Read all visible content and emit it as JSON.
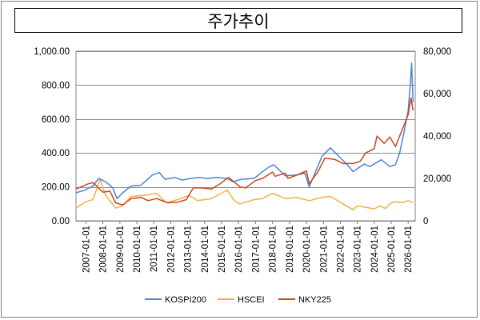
{
  "chart_data": {
    "type": "line",
    "title": "주가추이",
    "left_axis": {
      "min": 0,
      "max": 1000,
      "ticks": [
        "0.00",
        "200.00",
        "400.00",
        "600.00",
        "800.00",
        "1,000.00"
      ],
      "tick_values": [
        0,
        200,
        400,
        600,
        800,
        1000
      ]
    },
    "right_axis": {
      "min": 0,
      "max": 80000,
      "ticks": [
        "0",
        "20,000",
        "40,000",
        "60,000",
        "80,000"
      ],
      "tick_values": [
        0,
        20000,
        40000,
        60000,
        80000
      ]
    },
    "x_axis": {
      "start": "2006-06-01",
      "end": "2026-06-01",
      "ticks": [
        "2007-01-01",
        "2008-01-01",
        "2009-01-01",
        "2010-01-01",
        "2011-01-01",
        "2012-01-01",
        "2013-01-01",
        "2014-01-01",
        "2015-01-01",
        "2016-01-01",
        "2017-01-01",
        "2018-01-01",
        "2019-01-01",
        "2020-01-01",
        "2021-01-01",
        "2022-01-01",
        "2023-01-01",
        "2024-01-01",
        "2025-01-01",
        "2026-01-01"
      ]
    },
    "grid": "horizontal",
    "legend_position": "bottom",
    "series": [
      {
        "name": "KOSPI200",
        "axis": "left",
        "color": "#4a86d0",
        "x": [
          "2006-06-01",
          "2006-12-01",
          "2007-06-01",
          "2007-10-01",
          "2008-03-01",
          "2008-08-01",
          "2008-11-01",
          "2009-03-01",
          "2009-09-01",
          "2010-04-01",
          "2010-12-01",
          "2011-05-01",
          "2011-09-01",
          "2012-04-01",
          "2012-09-01",
          "2013-03-01",
          "2013-09-01",
          "2014-03-01",
          "2014-09-01",
          "2015-05-01",
          "2015-09-01",
          "2016-03-01",
          "2016-12-01",
          "2017-06-01",
          "2017-11-01",
          "2018-02-01",
          "2018-10-01",
          "2019-06-01",
          "2019-12-01",
          "2020-03-01",
          "2020-06-01",
          "2020-12-01",
          "2021-06-01",
          "2021-12-01",
          "2022-06-01",
          "2022-10-01",
          "2023-06-01",
          "2023-10-01",
          "2024-06-01",
          "2024-12-01",
          "2025-04-01",
          "2025-07-01",
          "2025-10-01",
          "2026-01-01",
          "2026-02-15",
          "2026-03-15",
          "2026-04-15"
        ],
        "y": [
          165,
          180,
          205,
          250,
          230,
          195,
          130,
          165,
          205,
          210,
          270,
          285,
          245,
          255,
          240,
          250,
          255,
          250,
          255,
          250,
          230,
          245,
          250,
          290,
          320,
          330,
          265,
          270,
          280,
          200,
          260,
          380,
          430,
          380,
          330,
          290,
          335,
          320,
          360,
          320,
          330,
          400,
          520,
          650,
          800,
          930,
          700
        ]
      },
      {
        "name": "HSCEI",
        "axis": "right",
        "color": "#f4b042",
        "x": [
          "2006-06-01",
          "2007-01-01",
          "2007-06-01",
          "2007-11-01",
          "2008-03-01",
          "2008-10-01",
          "2009-03-01",
          "2009-09-01",
          "2010-06-01",
          "2011-03-01",
          "2011-10-01",
          "2012-06-01",
          "2013-02-01",
          "2013-08-01",
          "2014-06-01",
          "2015-05-01",
          "2015-10-01",
          "2016-02-01",
          "2016-12-01",
          "2017-06-01",
          "2018-01-01",
          "2018-10-01",
          "2019-06-01",
          "2020-03-01",
          "2020-12-01",
          "2021-06-01",
          "2022-03-01",
          "2022-10-01",
          "2023-01-01",
          "2023-10-01",
          "2024-01-01",
          "2024-05-01",
          "2024-09-01",
          "2024-12-01",
          "2025-03-01",
          "2025-09-01",
          "2026-01-01",
          "2026-04-15"
        ],
        "y": [
          6000,
          9000,
          10000,
          19500,
          12000,
          6000,
          7000,
          11500,
          12000,
          13000,
          8500,
          10000,
          12000,
          9500,
          10500,
          14500,
          9500,
          8000,
          10000,
          10500,
          13000,
          10500,
          11000,
          9500,
          11000,
          11500,
          8000,
          5200,
          7000,
          6000,
          5500,
          7000,
          5800,
          8000,
          9000,
          8600,
          9500,
          8500
        ]
      },
      {
        "name": "NKY225",
        "axis": "right",
        "color": "#c8481e",
        "x": [
          "2006-06-01",
          "2007-03-01",
          "2007-06-01",
          "2008-01-01",
          "2008-06-01",
          "2008-10-01",
          "2009-03-01",
          "2009-09-01",
          "2010-04-01",
          "2010-09-01",
          "2011-03-01",
          "2011-11-01",
          "2012-06-01",
          "2012-12-01",
          "2013-05-01",
          "2013-11-01",
          "2014-06-01",
          "2014-12-01",
          "2015-06-01",
          "2016-02-01",
          "2016-06-01",
          "2017-01-01",
          "2017-06-01",
          "2018-01-01",
          "2018-03-01",
          "2018-10-01",
          "2018-12-01",
          "2019-06-01",
          "2020-01-01",
          "2020-03-01",
          "2020-09-01",
          "2021-02-01",
          "2021-09-01",
          "2022-03-01",
          "2022-10-01",
          "2023-03-01",
          "2023-07-01",
          "2024-01-01",
          "2024-03-01",
          "2024-08-01",
          "2024-12-01",
          "2025-04-01",
          "2025-07-01",
          "2025-10-01",
          "2026-01-01",
          "2026-03-01",
          "2026-04-15"
        ],
        "y": [
          15000,
          17500,
          18000,
          13500,
          14000,
          8500,
          7500,
          10500,
          11000,
          9500,
          10500,
          8500,
          8800,
          10000,
          15500,
          15500,
          15000,
          17500,
          20500,
          16000,
          15500,
          19000,
          20000,
          23000,
          21000,
          22500,
          20000,
          21500,
          23500,
          17500,
          23000,
          29500,
          29000,
          27000,
          27000,
          28000,
          32000,
          34000,
          40000,
          36500,
          39500,
          35000,
          40000,
          45000,
          50000,
          58000,
          52000
        ]
      }
    ]
  }
}
